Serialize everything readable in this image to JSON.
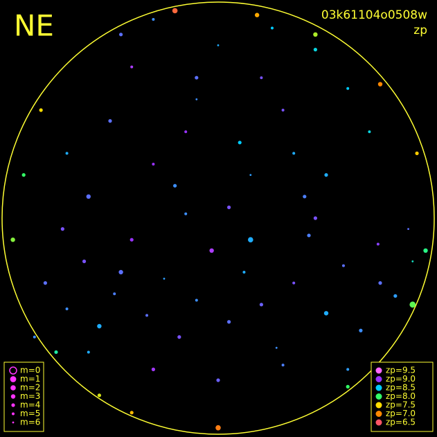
{
  "chart_data": {
    "type": "scatter",
    "title": "NE",
    "label": "03k61104o0508w",
    "subtitle": "zp",
    "xlim": [
      -1,
      1
    ],
    "ylim": [
      -1,
      1
    ],
    "x": [
      -0.8,
      -0.7,
      -0.62,
      -0.55,
      -0.48,
      -0.4,
      -0.33,
      -0.25,
      -0.18,
      -0.1,
      -0.03,
      0.05,
      0.12,
      0.2,
      0.27,
      0.35,
      0.42,
      0.5,
      0.58,
      0.66,
      0.74,
      0.82,
      0.88,
      -0.85,
      -0.72,
      -0.6,
      -0.45,
      -0.3,
      -0.15,
      0.0,
      0.15,
      0.3,
      0.45,
      0.6,
      0.75,
      0.9,
      -0.7,
      -0.5,
      -0.3,
      -0.1,
      0.1,
      0.3,
      0.5,
      0.7,
      -0.6,
      -0.4,
      -0.2,
      0.0,
      0.2,
      0.4,
      0.6,
      -0.45,
      -0.15,
      0.15,
      0.45,
      -0.3,
      0.05,
      0.35,
      -0.1,
      0.25,
      -0.9,
      -0.95,
      0.92,
      0.96,
      -0.55,
      0.6,
      -0.2,
      0.18,
      0.9,
      -0.82,
      0.75,
      -0.4,
      0.45,
      0.0,
      -0.75
    ],
    "y": [
      -0.3,
      -0.42,
      -0.2,
      -0.5,
      -0.35,
      -0.1,
      -0.45,
      -0.28,
      -0.55,
      -0.38,
      -0.15,
      -0.48,
      -0.25,
      -0.4,
      -0.6,
      -0.3,
      -0.08,
      -0.44,
      -0.22,
      -0.52,
      -0.12,
      -0.36,
      -0.05,
      -0.55,
      -0.05,
      -0.62,
      -0.25,
      -0.7,
      0.02,
      -0.75,
      -0.1,
      -0.68,
      0.0,
      -0.7,
      -0.3,
      -0.2,
      0.3,
      0.45,
      0.25,
      0.55,
      0.35,
      0.5,
      0.2,
      0.4,
      0.1,
      0.7,
      0.15,
      0.8,
      0.65,
      0.1,
      0.6,
      0.85,
      0.4,
      0.2,
      0.78,
      0.92,
      0.05,
      0.3,
      0.65,
      0.88,
      0.2,
      -0.1,
      0.3,
      -0.15,
      -0.82,
      -0.78,
      0.96,
      0.94,
      -0.4,
      0.5,
      0.62,
      -0.9,
      0.85,
      -0.97,
      -0.62
    ],
    "m": [
      4,
      5,
      4,
      3,
      5,
      4,
      5,
      6,
      4,
      5,
      3,
      4,
      5,
      4,
      6,
      5,
      4,
      3,
      5,
      4,
      5,
      4,
      6,
      5,
      4,
      5,
      3,
      4,
      5,
      4,
      2,
      5,
      4,
      5,
      4,
      6,
      5,
      4,
      5,
      6,
      4,
      5,
      4,
      5,
      3,
      5,
      4,
      6,
      5,
      4,
      5,
      4,
      5,
      6,
      4,
      5,
      4,
      5,
      4,
      5,
      4,
      3,
      4,
      3,
      4,
      4,
      2,
      3,
      1,
      4,
      3,
      4,
      3,
      2,
      4
    ],
    "zp": [
      8.8,
      8.7,
      8.9,
      8.6,
      8.75,
      9.0,
      8.8,
      8.65,
      8.9,
      8.7,
      9.1,
      8.8,
      8.6,
      8.85,
      8.7,
      8.9,
      8.75,
      8.6,
      8.8,
      8.7,
      8.95,
      8.65,
      8.8,
      8.7,
      8.9,
      8.6,
      8.8,
      9.05,
      8.7,
      8.85,
      8.6,
      8.75,
      8.9,
      8.65,
      8.8,
      8.3,
      8.6,
      8.8,
      9.0,
      8.7,
      8.5,
      8.9,
      8.6,
      8.4,
      8.8,
      9.1,
      8.7,
      8.6,
      8.9,
      8.75,
      8.5,
      8.8,
      9.0,
      8.65,
      8.4,
      8.7,
      8.9,
      8.6,
      8.8,
      8.5,
      8.0,
      7.8,
      7.4,
      8.1,
      7.6,
      8.0,
      6.7,
      7.2,
      7.9,
      7.5,
      7.0,
      7.3,
      7.7,
      6.9,
      8.2
    ],
    "m_legend": [
      {
        "label": "m=0",
        "m": 0
      },
      {
        "label": "m=1",
        "m": 1
      },
      {
        "label": "m=2",
        "m": 2
      },
      {
        "label": "m=3",
        "m": 3
      },
      {
        "label": "m=4",
        "m": 4
      },
      {
        "label": "m=5",
        "m": 5
      },
      {
        "label": "m=6",
        "m": 6
      }
    ],
    "zp_legend": [
      {
        "label": "zp=9.5",
        "zp": 9.5,
        "color": "#ff66ff"
      },
      {
        "label": "zp=9.0",
        "zp": 9.0,
        "color": "#9933ff"
      },
      {
        "label": "zp=8.5",
        "zp": 8.5,
        "color": "#00ccff"
      },
      {
        "label": "zp=8.0",
        "zp": 8.0,
        "color": "#33ff66"
      },
      {
        "label": "zp=7.5",
        "zp": 7.5,
        "color": "#ffdd00"
      },
      {
        "label": "zp=7.0",
        "zp": 7.0,
        "color": "#ff8800"
      },
      {
        "label": "zp=6.5",
        "zp": 6.5,
        "color": "#ff5566"
      }
    ]
  }
}
